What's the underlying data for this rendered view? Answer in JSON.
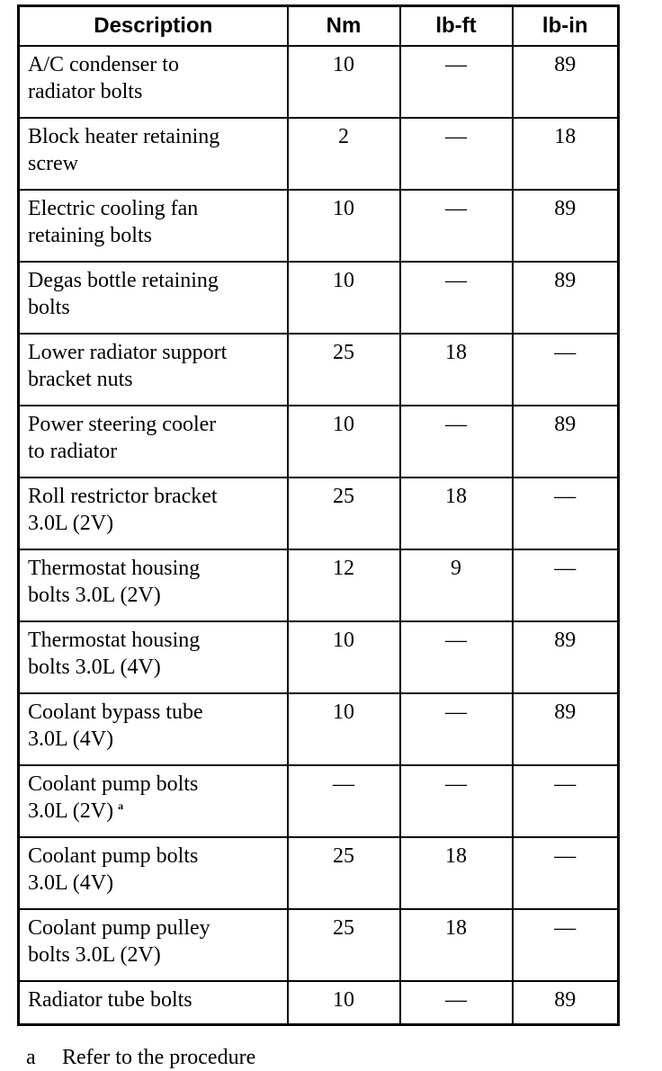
{
  "table": {
    "headers": [
      "Description",
      "Nm",
      "lb-ft",
      "lb-in"
    ],
    "rows": [
      {
        "desc_l1": "A/C condenser to",
        "desc_l2": "radiator bolts",
        "nm": "10",
        "lbft": "—",
        "lbin": "89"
      },
      {
        "desc_l1": "Block heater retaining",
        "desc_l2": "screw",
        "nm": "2",
        "lbft": "—",
        "lbin": "18"
      },
      {
        "desc_l1": "Electric cooling fan",
        "desc_l2": "retaining bolts",
        "nm": "10",
        "lbft": "—",
        "lbin": "89"
      },
      {
        "desc_l1": "Degas bottle retaining",
        "desc_l2": "bolts",
        "nm": "10",
        "lbft": "—",
        "lbin": "89"
      },
      {
        "desc_l1": "Lower radiator support",
        "desc_l2": "bracket nuts",
        "nm": "25",
        "lbft": "18",
        "lbin": "—"
      },
      {
        "desc_l1": "Power steering cooler",
        "desc_l2": "to radiator",
        "nm": "10",
        "lbft": "—",
        "lbin": "89"
      },
      {
        "desc_l1": "Roll restrictor bracket",
        "desc_l2": "3.0L (2V)",
        "nm": "25",
        "lbft": "18",
        "lbin": "—"
      },
      {
        "desc_l1": "Thermostat housing",
        "desc_l2": "bolts 3.0L (2V)",
        "nm": "12",
        "lbft": "9",
        "lbin": "—"
      },
      {
        "desc_l1": "Thermostat housing",
        "desc_l2": "bolts 3.0L (4V)",
        "nm": "10",
        "lbft": "—",
        "lbin": "89"
      },
      {
        "desc_l1": "Coolant bypass tube",
        "desc_l2": "3.0L (4V)",
        "nm": "10",
        "lbft": "—",
        "lbin": "89"
      },
      {
        "desc_l1": "Coolant pump bolts",
        "desc_l2": "3.0L (2V)",
        "footnote": "a",
        "nm": "—",
        "lbft": "—",
        "lbin": "—"
      },
      {
        "desc_l1": "Coolant pump bolts",
        "desc_l2": "3.0L (4V)",
        "nm": "25",
        "lbft": "18",
        "lbin": "—"
      },
      {
        "desc_l1": "Coolant pump pulley",
        "desc_l2": "bolts 3.0L (2V)",
        "nm": "25",
        "lbft": "18",
        "lbin": "—"
      },
      {
        "desc_l1": "Radiator tube bolts",
        "nm": "10",
        "lbft": "—",
        "lbin": "89"
      }
    ]
  },
  "footnote": {
    "mark": "a",
    "text": "Refer to the procedure"
  }
}
